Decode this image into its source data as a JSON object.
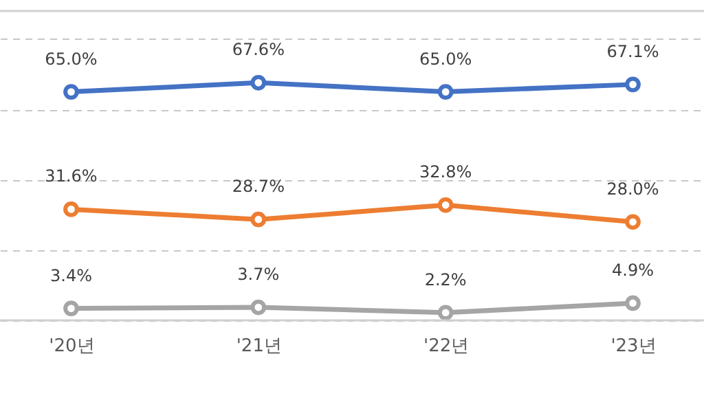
{
  "chart_data": {
    "type": "line",
    "categories": [
      "'20년",
      "'21년",
      "'22년",
      "'23년"
    ],
    "series": [
      {
        "color": "#4472c4",
        "values": [
          65.0,
          67.6,
          65.0,
          67.1
        ],
        "value_labels": [
          "65.0%",
          "67.6%",
          "65.0%",
          "67.1%"
        ]
      },
      {
        "color": "#ed7d31",
        "values": [
          31.6,
          28.7,
          32.8,
          28.0
        ],
        "value_labels": [
          "31.6%",
          "28.7%",
          "32.8%",
          "28.0%"
        ]
      },
      {
        "color": "#a5a5a5",
        "values": [
          3.4,
          3.7,
          2.2,
          4.9
        ],
        "value_labels": [
          "3.4%",
          "3.7%",
          "2.2%",
          "4.9%"
        ]
      }
    ],
    "ylim": [
      0,
      88
    ],
    "yticks": [
      {
        "value": 0,
        "label": null
      },
      {
        "value": 20,
        "label": null
      },
      {
        "value": 40,
        "label": null
      },
      {
        "value": 60,
        "label": null
      },
      {
        "value": 80,
        "label": null
      }
    ],
    "grid": "y",
    "tick_labels": "x",
    "marker": "circle",
    "line_style": "solid"
  }
}
